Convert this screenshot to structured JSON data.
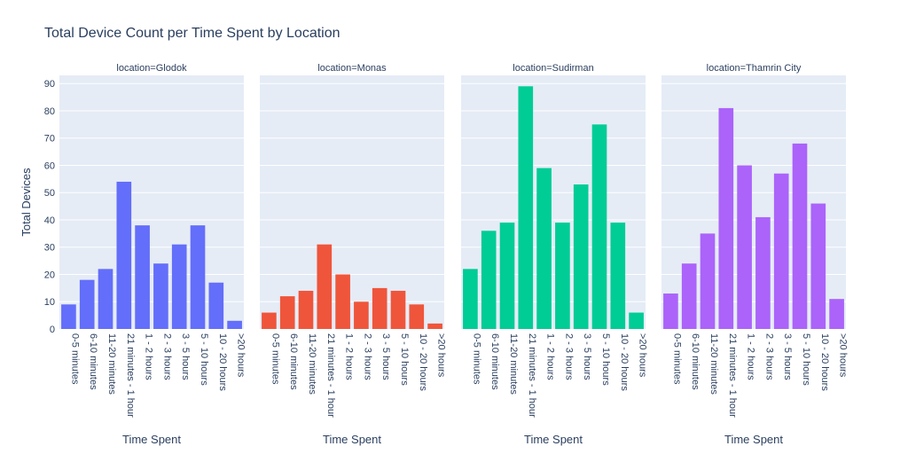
{
  "chart_data": {
    "type": "bar",
    "title": "Total Device Count per Time Spent by Location",
    "ylabel": "Total Devices",
    "xlabel": "Time Spent",
    "ylim": [
      0,
      93
    ],
    "yticks": [
      0,
      10,
      20,
      30,
      40,
      50,
      60,
      70,
      80,
      90
    ],
    "grid": true,
    "categories": [
      "0-5 minutes",
      "6-10 minutes",
      "11-20 minutes",
      "21 minutes - 1 hour",
      "1 - 2 hours",
      "2 - 3 hours",
      "3 - 5 hours",
      "5 - 10 hours",
      "10 - 20 hours",
      ">20 hours"
    ],
    "facets": [
      {
        "title": "location=Glodok",
        "color": "#636efa",
        "values": [
          9,
          18,
          22,
          54,
          38,
          24,
          31,
          38,
          17,
          3
        ]
      },
      {
        "title": "location=Monas",
        "color": "#ef553b",
        "values": [
          6,
          12,
          14,
          31,
          20,
          10,
          15,
          14,
          9,
          2
        ]
      },
      {
        "title": "location=Sudirman",
        "color": "#00cc96",
        "values": [
          22,
          36,
          39,
          89,
          59,
          39,
          53,
          75,
          39,
          6
        ]
      },
      {
        "title": "location=Thamrin City",
        "color": "#ab63fa",
        "values": [
          13,
          24,
          35,
          81,
          60,
          41,
          57,
          68,
          46,
          11
        ]
      }
    ]
  }
}
